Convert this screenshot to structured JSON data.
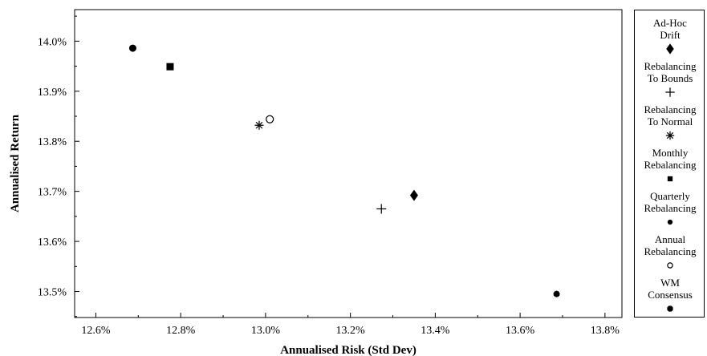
{
  "chart_data": {
    "type": "scatter",
    "xlabel": "Annualised Risk (Std Dev)",
    "ylabel": "Annualised Return",
    "xlim": [
      12.55,
      13.84
    ],
    "ylim": [
      13.448,
      14.063
    ],
    "x_ticks": [
      12.6,
      12.8,
      13.0,
      13.2,
      13.4,
      13.6,
      13.8
    ],
    "y_ticks": [
      13.5,
      13.6,
      13.7,
      13.8,
      13.9,
      14.0
    ],
    "x_tick_labels": [
      "12.6%",
      "12.8%",
      "13.0%",
      "13.2%",
      "13.4%",
      "13.6%",
      "13.8%"
    ],
    "y_tick_labels": [
      "13.5%",
      "13.6%",
      "13.7%",
      "13.8%",
      "13.9%",
      "14.0%"
    ],
    "grid": false,
    "legend_position": "right",
    "series": [
      {
        "name": "Ad-Hoc\nDrift",
        "marker": "diamond",
        "x": 13.35,
        "y": 13.692
      },
      {
        "name": "Rebalancing\nTo Bounds",
        "marker": "plus",
        "x": 13.273,
        "y": 13.665
      },
      {
        "name": "Rebalancing\nTo Normal",
        "marker": "asterisk",
        "x": 12.985,
        "y": 13.832
      },
      {
        "name": "Monthly\nRebalancing",
        "marker": "square",
        "x": 12.775,
        "y": 13.949
      },
      {
        "name": "Quarterly\nRebalancing",
        "marker": "circle",
        "x": 12.687,
        "y": 13.986
      },
      {
        "name": "Annual\nRebalancing",
        "marker": "open-circle",
        "x": 13.01,
        "y": 13.844
      },
      {
        "name": "WM\nConsensus",
        "marker": "star",
        "x": 13.686,
        "y": 13.495
      }
    ]
  }
}
